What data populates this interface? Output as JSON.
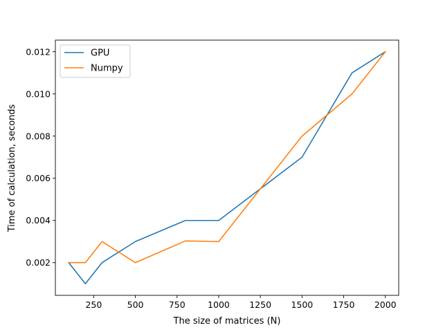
{
  "chart_data": {
    "type": "line",
    "xlabel": "The size of matrices (N)",
    "ylabel": "Time of calculation, seconds",
    "xlim": [
      20,
      2080
    ],
    "ylim": [
      0.00045,
      0.01255
    ],
    "xticks": [
      250,
      500,
      750,
      1000,
      1250,
      1500,
      1750,
      2000
    ],
    "xtick_labels": [
      "250",
      "500",
      "750",
      "1000",
      "1250",
      "1500",
      "1750",
      "2000"
    ],
    "yticks": [
      0.002,
      0.004,
      0.006,
      0.008,
      0.01,
      0.012
    ],
    "ytick_labels": [
      "0.002",
      "0.004",
      "0.006",
      "0.008",
      "0.010",
      "0.012"
    ],
    "grid": false,
    "legend_position": "top-left",
    "series": [
      {
        "name": "GPU",
        "color": "#1f77b4",
        "x": [
          100,
          200,
          300,
          500,
          800,
          1000,
          1500,
          1800,
          2000
        ],
        "y": [
          0.002,
          0.001,
          0.002,
          0.003,
          0.004,
          0.004,
          0.007,
          0.011,
          0.012
        ]
      },
      {
        "name": "Numpy",
        "color": "#ff7f0e",
        "x": [
          100,
          200,
          300,
          500,
          800,
          1000,
          1500,
          1800,
          2000
        ],
        "y": [
          0.002,
          0.002,
          0.003,
          0.002,
          0.00303,
          0.003,
          0.008,
          0.01,
          0.012
        ]
      }
    ]
  }
}
